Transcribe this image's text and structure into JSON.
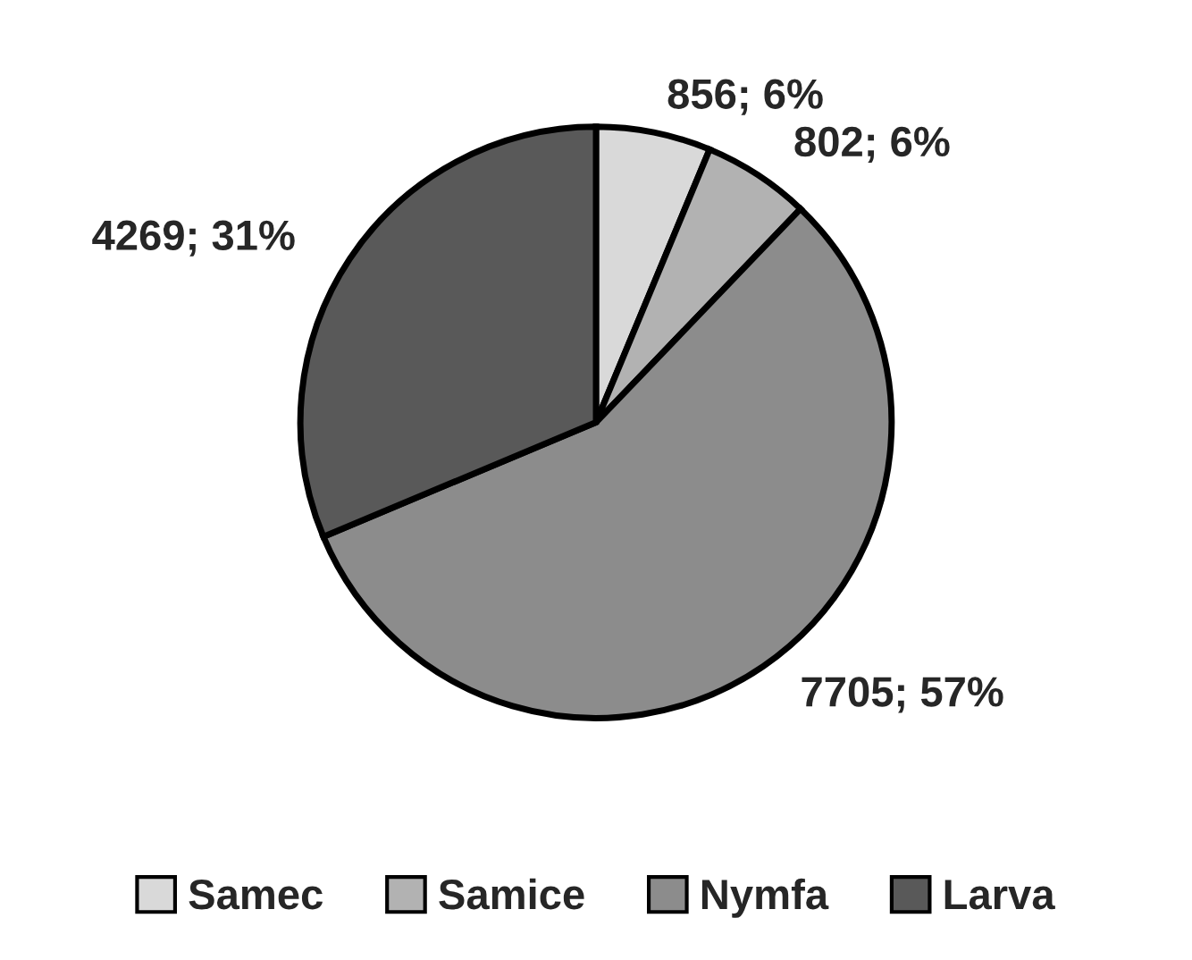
{
  "chart_data": {
    "type": "pie",
    "categories": [
      "Samec",
      "Samice",
      "Nymfa",
      "Larva"
    ],
    "values": [
      856,
      802,
      7705,
      4269
    ],
    "value_labels": [
      "856; 6%",
      "802; 6%",
      "7705; 57%",
      "4269; 31%"
    ],
    "colors": [
      "#d9d9d9",
      "#b2b2b2",
      "#8c8c8c",
      "#595959"
    ],
    "legend": "bottom"
  }
}
